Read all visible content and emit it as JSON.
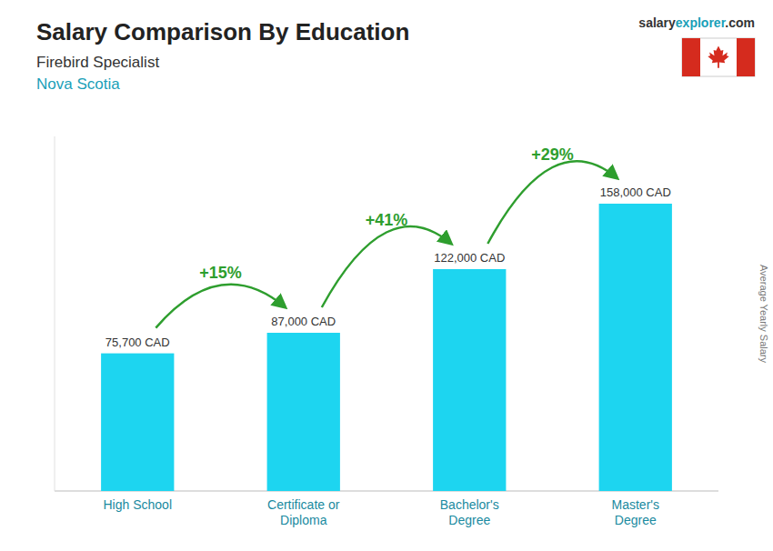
{
  "chart_data": {
    "type": "bar",
    "title": "Salary Comparison By Education",
    "subtitle": "Firebird Specialist",
    "location": "Nova Scotia",
    "website": [
      "salary",
      "explorer",
      ".com"
    ],
    "ylabel": "Average Yearly Salary",
    "categories": [
      "High School",
      "Certificate or\nDiploma",
      "Bachelor's\nDegree",
      "Master's\nDegree"
    ],
    "values": [
      75700,
      87000,
      122000,
      158000
    ],
    "value_labels": [
      "75,700 CAD",
      "87,000 CAD",
      "122,000 CAD",
      "158,000 CAD"
    ],
    "data_labels": true,
    "color": "#1dd5f0",
    "ylim": [
      0,
      195000
    ],
    "tick_labels": "x",
    "annotations": [
      {
        "text": "+15%",
        "from": 0,
        "to": 1
      },
      {
        "text": "+41%",
        "from": 1,
        "to": 2
      },
      {
        "text": "+29%",
        "from": 2,
        "to": 3
      }
    ]
  }
}
